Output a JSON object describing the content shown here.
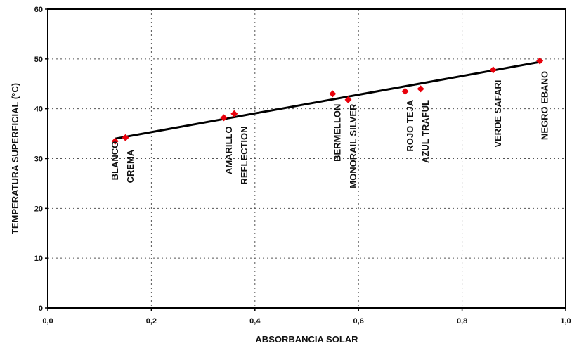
{
  "chart_data": {
    "type": "scatter",
    "xlabel": "ABSORBANCIA SOLAR",
    "ylabel": "TEMPERATURA SUPERFICIAL (°C)",
    "xlim": [
      0,
      1
    ],
    "ylim": [
      0,
      60
    ],
    "x_ticks": [
      "0,0",
      "0,2",
      "0,4",
      "0,6",
      "0,8",
      "1,0"
    ],
    "y_ticks": [
      "0",
      "10",
      "20",
      "30",
      "40",
      "50",
      "60"
    ],
    "grid": "dotted",
    "marker_color": "#e8000b",
    "line_color": "#000000",
    "points": [
      {
        "x": 0.13,
        "y": 33.5
      },
      {
        "x": 0.15,
        "y": 34.2
      },
      {
        "x": 0.34,
        "y": 38.2
      },
      {
        "x": 0.36,
        "y": 39.0
      },
      {
        "x": 0.55,
        "y": 43.0
      },
      {
        "x": 0.58,
        "y": 41.8
      },
      {
        "x": 0.69,
        "y": 43.5
      },
      {
        "x": 0.72,
        "y": 44.0
      },
      {
        "x": 0.86,
        "y": 47.8
      },
      {
        "x": 0.95,
        "y": 49.6
      }
    ],
    "trendline": {
      "x": [
        0.13,
        0.95
      ],
      "y": [
        34.0,
        49.4
      ]
    },
    "labels": [
      {
        "text": "BLANCO",
        "x": 0.13,
        "y": 33.5
      },
      {
        "text": "CREMA",
        "x": 0.16,
        "y": 31.8
      },
      {
        "text": "AMARILLO",
        "x": 0.35,
        "y": 36.5
      },
      {
        "text": "REFLECTION",
        "x": 0.38,
        "y": 36.5
      },
      {
        "text": "BERMELLON",
        "x": 0.56,
        "y": 41.0
      },
      {
        "text": "MONORAIL SILVER",
        "x": 0.59,
        "y": 41.0
      },
      {
        "text": "ROJO TEJA",
        "x": 0.7,
        "y": 41.8
      },
      {
        "text": "AZUL TRAFUL",
        "x": 0.73,
        "y": 41.8
      },
      {
        "text": "VERDE SAFARI",
        "x": 0.87,
        "y": 45.8
      },
      {
        "text": "NEGRO EBANO",
        "x": 0.96,
        "y": 47.6
      }
    ]
  }
}
